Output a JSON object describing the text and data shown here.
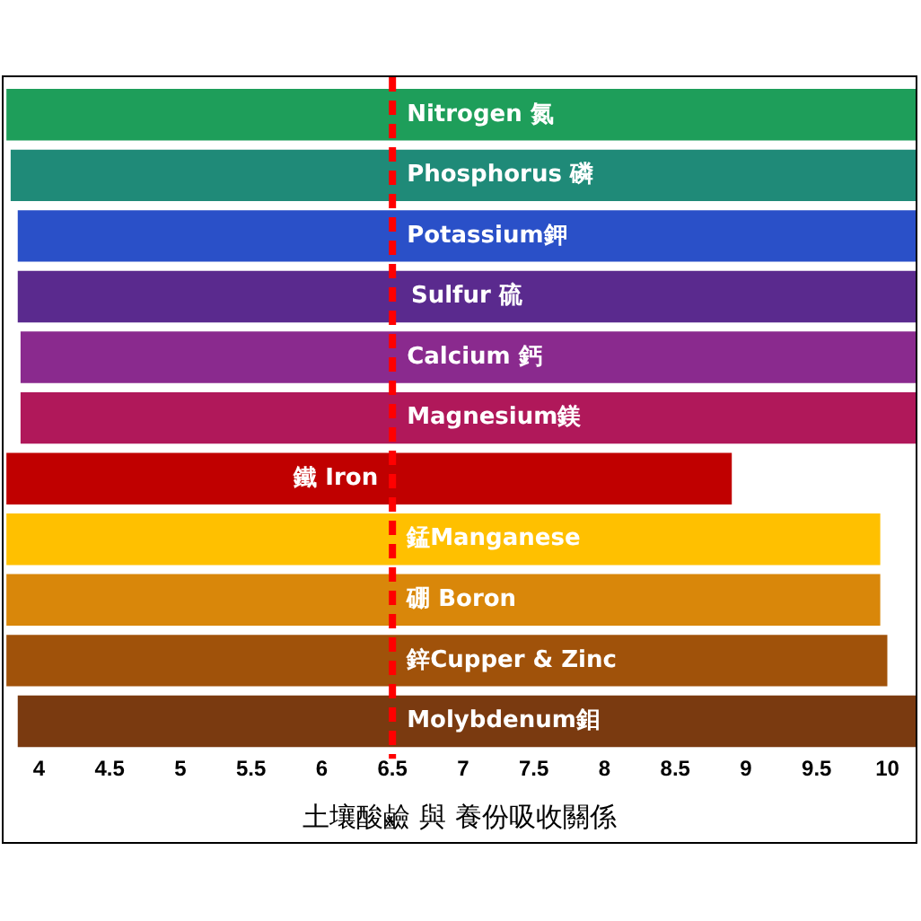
{
  "chart_data": {
    "type": "bar",
    "orientation": "horizontal",
    "xlabel": "土壤酸鹼 與 養份吸收關係",
    "categories": [
      "Nitrogen 氮",
      "Phosphorus 磷",
      "Potassium鉀",
      "Sulfur 硫",
      "Calcium 鈣",
      "Magnesium鎂",
      "鐵 Iron",
      "錳Manganese",
      "硼 Boron",
      "鋅Cupper & Zinc",
      "Molybdenum鉬"
    ],
    "base": [
      3.77,
      3.8,
      3.85,
      3.85,
      3.87,
      3.87,
      3.77,
      3.77,
      3.77,
      3.77,
      3.85
    ],
    "values": [
      6.43,
      6.4,
      6.35,
      6.35,
      6.33,
      6.33,
      5.13,
      6.18,
      6.18,
      6.23,
      6.35
    ],
    "colors": [
      "#1e9e5a",
      "#1f8a78",
      "#2a50c8",
      "#5a2a8e",
      "#8a2a8e",
      "#b0185a",
      "#c00000",
      "#ffc000",
      "#d9870a",
      "#a0520a",
      "#7a3a10"
    ],
    "xlim": [
      3.75,
      10.2
    ],
    "xticks": [
      4,
      4.5,
      5,
      5.5,
      6,
      6.5,
      7,
      7.5,
      8,
      8.5,
      9,
      9.5,
      10
    ],
    "grid": false,
    "legend": false,
    "ref_lines": [
      {
        "axis": "x",
        "value": 6.5,
        "color": "#ff0000",
        "line_style": "dashed"
      }
    ]
  }
}
